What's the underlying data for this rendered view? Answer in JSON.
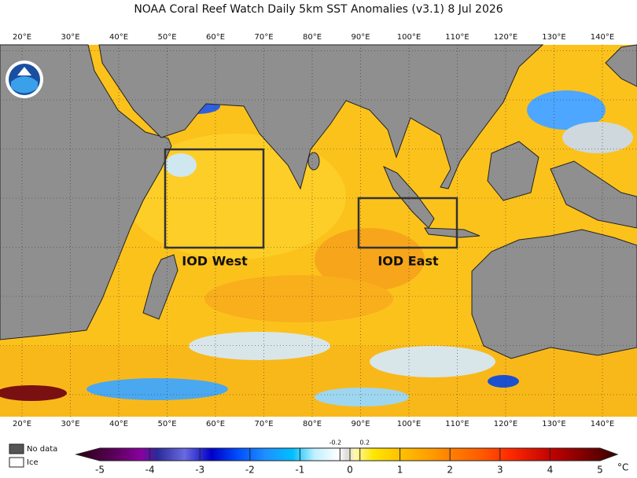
{
  "title": "NOAA Coral Reef Watch Daily 5km SST Anomalies  (v3.1)   8 Jul 2026",
  "longitude_labels": [
    "20°E",
    "30°E",
    "40°E",
    "50°E",
    "60°E",
    "70°E",
    "80°E",
    "90°E",
    "100°E",
    "110°E",
    "120°E",
    "130°E",
    "140°E"
  ],
  "regions": [
    {
      "label": "IOD West"
    },
    {
      "label": "IOD East"
    }
  ],
  "legend": {
    "no_data": "No data",
    "ice": "Ice"
  },
  "colorbar": {
    "range": [
      -5,
      5
    ],
    "ticks": [
      -5,
      -4,
      -3,
      -2,
      -1,
      0,
      1,
      2,
      3,
      4,
      5
    ],
    "minor_ticks": [
      -0.2,
      0.2
    ],
    "unit": "°C"
  }
}
